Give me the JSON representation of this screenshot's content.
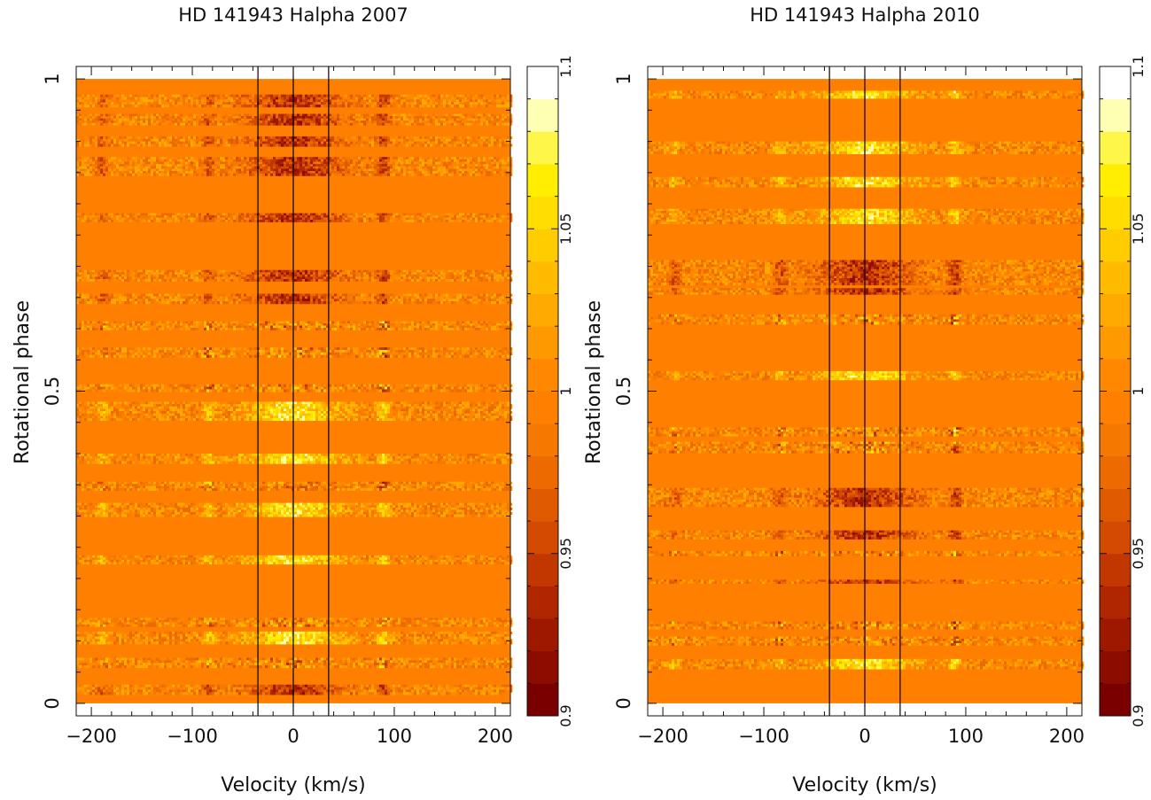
{
  "colors": {
    "background": "#ff7f00",
    "vline": "#000000",
    "frame": "#000000",
    "scale": [
      "#7a0000",
      "#8c0c00",
      "#9e1800",
      "#b02600",
      "#c23600",
      "#d44a00",
      "#e05a00",
      "#ec6a00",
      "#f57800",
      "#ff7f00",
      "#ff8800",
      "#ff9900",
      "#ffaa00",
      "#ffbb00",
      "#ffcc00",
      "#ffdd00",
      "#ffee00",
      "#fff64a",
      "#ffffb3",
      "#ffffff"
    ]
  },
  "chart_data": [
    {
      "type": "heatmap",
      "title": "HD 141943 Halpha 2007",
      "xlabel": "Velocity (km/s)",
      "ylabel": "Rotational phase",
      "xlim": [
        -215,
        215
      ],
      "ylim": [
        -0.02,
        1.02
      ],
      "xticks": [
        -200,
        -100,
        0,
        100,
        200
      ],
      "xtick_labels": [
        "−200",
        "−100",
        "0",
        "100",
        "200"
      ],
      "yticks": [
        0,
        0.5,
        1
      ],
      "ytick_labels": [
        "0",
        "0.5",
        "1"
      ],
      "colorbar": {
        "min": 0.9,
        "max": 1.1,
        "ticks": [
          0.9,
          0.95,
          1,
          1.05,
          1.1
        ],
        "tick_labels": [
          "0.9",
          "0.95",
          "1",
          "1.05",
          "1.1"
        ]
      },
      "vertical_lines": [
        -35,
        0,
        35
      ],
      "observations": [
        {
          "phase": 0.022,
          "width": 0.016,
          "feature": "dark"
        },
        {
          "phase": 0.065,
          "width": 0.016,
          "feature": "mixed"
        },
        {
          "phase": 0.105,
          "width": 0.02,
          "feature": "bright"
        },
        {
          "phase": 0.13,
          "width": 0.014,
          "feature": "mixed"
        },
        {
          "phase": 0.23,
          "width": 0.014,
          "feature": "bright"
        },
        {
          "phase": 0.31,
          "width": 0.022,
          "feature": "bright"
        },
        {
          "phase": 0.348,
          "width": 0.014,
          "feature": "mixed"
        },
        {
          "phase": 0.392,
          "width": 0.016,
          "feature": "bright"
        },
        {
          "phase": 0.468,
          "width": 0.03,
          "feature": "bright"
        },
        {
          "phase": 0.505,
          "width": 0.012,
          "feature": "mixed"
        },
        {
          "phase": 0.562,
          "width": 0.016,
          "feature": "mixed"
        },
        {
          "phase": 0.605,
          "width": 0.014,
          "feature": "mixed"
        },
        {
          "phase": 0.648,
          "width": 0.016,
          "feature": "dark"
        },
        {
          "phase": 0.685,
          "width": 0.018,
          "feature": "dark"
        },
        {
          "phase": 0.778,
          "width": 0.014,
          "feature": "dark"
        },
        {
          "phase": 0.86,
          "width": 0.03,
          "feature": "dark"
        },
        {
          "phase": 0.9,
          "width": 0.016,
          "feature": "dark"
        },
        {
          "phase": 0.935,
          "width": 0.018,
          "feature": "dark"
        },
        {
          "phase": 0.965,
          "width": 0.02,
          "feature": "dark"
        }
      ]
    },
    {
      "type": "heatmap",
      "title": "HD 141943 Halpha 2010",
      "xlabel": "Velocity (km/s)",
      "ylabel": "Rotational phase",
      "xlim": [
        -215,
        215
      ],
      "ylim": [
        -0.02,
        1.02
      ],
      "xticks": [
        -200,
        -100,
        0,
        100,
        200
      ],
      "xtick_labels": [
        "−200",
        "−100",
        "0",
        "100",
        "200"
      ],
      "yticks": [
        0,
        0.5,
        1
      ],
      "ytick_labels": [
        "0",
        "0.5",
        "1"
      ],
      "colorbar": {
        "min": 0.9,
        "max": 1.1,
        "ticks": [
          0.9,
          0.95,
          1,
          1.05,
          1.1
        ],
        "tick_labels": [
          "0.9",
          "0.95",
          "1",
          "1.05",
          "1.1"
        ]
      },
      "vertical_lines": [
        -35,
        0,
        35
      ],
      "observations": [
        {
          "phase": 0.063,
          "width": 0.016,
          "feature": "bright"
        },
        {
          "phase": 0.1,
          "width": 0.014,
          "feature": "mixed"
        },
        {
          "phase": 0.125,
          "width": 0.012,
          "feature": "mixed"
        },
        {
          "phase": 0.195,
          "width": 0.006,
          "feature": "dark"
        },
        {
          "phase": 0.24,
          "width": 0.008,
          "feature": "mixed"
        },
        {
          "phase": 0.27,
          "width": 0.014,
          "feature": "dark"
        },
        {
          "phase": 0.33,
          "width": 0.03,
          "feature": "dark"
        },
        {
          "phase": 0.41,
          "width": 0.018,
          "feature": "mixed"
        },
        {
          "phase": 0.435,
          "width": 0.014,
          "feature": "mixed"
        },
        {
          "phase": 0.525,
          "width": 0.014,
          "feature": "bright"
        },
        {
          "phase": 0.615,
          "width": 0.016,
          "feature": "mixed"
        },
        {
          "phase": 0.66,
          "width": 0.01,
          "feature": "dark"
        },
        {
          "phase": 0.69,
          "width": 0.04,
          "feature": "dark"
        },
        {
          "phase": 0.78,
          "width": 0.024,
          "feature": "bright"
        },
        {
          "phase": 0.835,
          "width": 0.016,
          "feature": "bright"
        },
        {
          "phase": 0.89,
          "width": 0.02,
          "feature": "bright"
        },
        {
          "phase": 0.975,
          "width": 0.012,
          "feature": "bright"
        }
      ]
    }
  ]
}
